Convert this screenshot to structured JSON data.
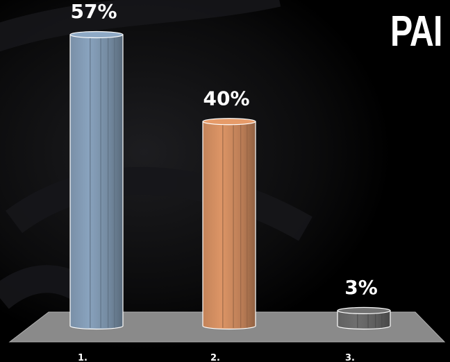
{
  "slide": {
    "title": "PAI",
    "colors": {
      "background": "#000000",
      "floor": "#8a8a8a",
      "text": "#ffffff"
    }
  },
  "chart_data": {
    "type": "bar",
    "style": "3d-cylinder",
    "categories": [
      "1.",
      "2.",
      "3."
    ],
    "values": [
      57,
      40,
      3
    ],
    "data_labels": [
      "57%",
      "40%",
      "3%"
    ],
    "colors": [
      "#7f97b0",
      "#cd8a5e",
      "#666666"
    ],
    "ylim": [
      0,
      57
    ],
    "grid": false,
    "legend": "none"
  }
}
